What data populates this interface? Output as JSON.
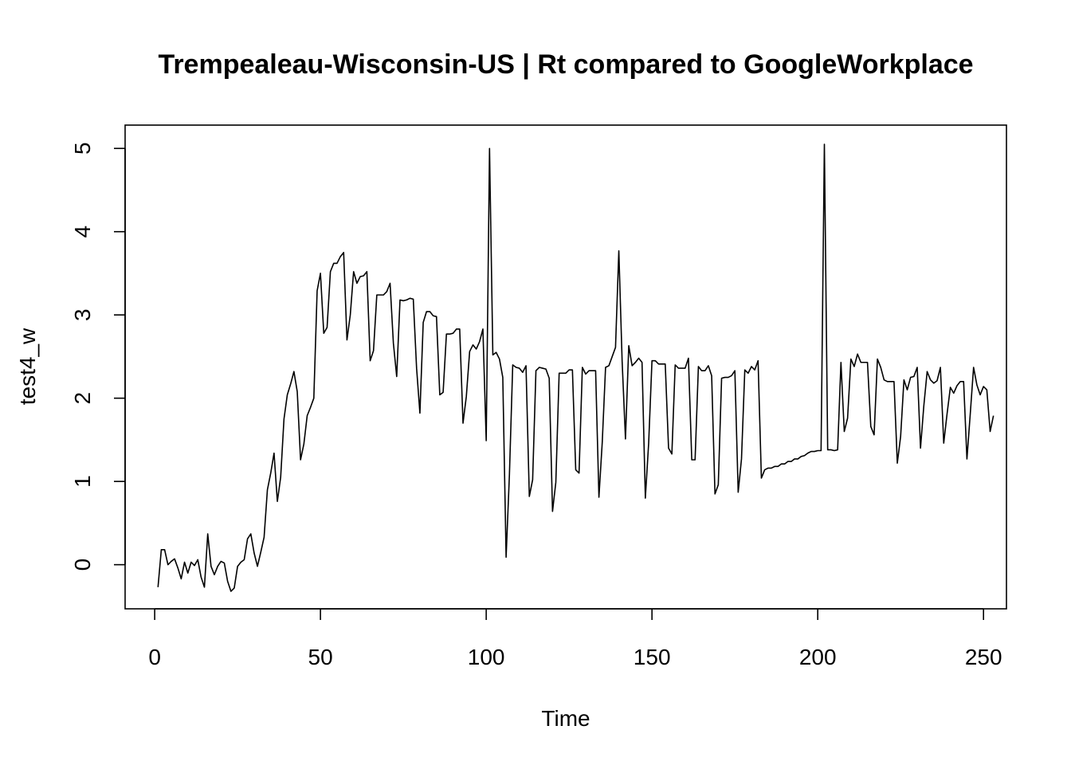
{
  "chart_data": {
    "type": "line",
    "title": "Trempealeau-Wisconsin-US | Rt compared to GoogleWorkplace",
    "xlabel": "Time",
    "ylabel": "test4_w",
    "xlim": [
      -8.92,
      256.92
    ],
    "ylim": [
      -0.53,
      5.28
    ],
    "x_ticks": [
      0,
      50,
      100,
      150,
      200,
      250
    ],
    "y_ticks": [
      0,
      1,
      2,
      3,
      4,
      5
    ],
    "grid": false,
    "legend": "none",
    "line_color": "#000000",
    "series": [
      {
        "x_start": 1,
        "x_step": 1,
        "values": [
          -0.27,
          0.18,
          0.18,
          0.0,
          0.04,
          0.07,
          -0.04,
          -0.17,
          0.03,
          -0.1,
          0.03,
          -0.01,
          0.06,
          -0.15,
          -0.27,
          0.37,
          -0.02,
          -0.12,
          -0.02,
          0.04,
          0.02,
          -0.2,
          -0.32,
          -0.28,
          -0.02,
          0.03,
          0.06,
          0.31,
          0.37,
          0.14,
          -0.02,
          0.15,
          0.33,
          0.9,
          1.1,
          1.34,
          0.76,
          1.05,
          1.75,
          2.04,
          2.17,
          2.32,
          2.08,
          1.26,
          1.45,
          1.79,
          1.89,
          2.0,
          3.29,
          3.5,
          2.78,
          2.85,
          3.52,
          3.62,
          3.62,
          3.7,
          3.75,
          2.7,
          3.0,
          3.52,
          3.38,
          3.46,
          3.47,
          3.52,
          2.45,
          2.57,
          3.24,
          3.24,
          3.24,
          3.28,
          3.38,
          2.66,
          2.26,
          3.18,
          3.17,
          3.18,
          3.2,
          3.19,
          2.36,
          1.82,
          2.91,
          3.04,
          3.04,
          2.99,
          2.98,
          2.04,
          2.07,
          2.77,
          2.77,
          2.78,
          2.83,
          2.83,
          1.7,
          2.02,
          2.56,
          2.64,
          2.59,
          2.68,
          2.83,
          1.49,
          5.0,
          2.52,
          2.55,
          2.47,
          2.25,
          0.09,
          1.08,
          2.4,
          2.37,
          2.36,
          2.31,
          2.39,
          0.82,
          1.02,
          2.33,
          2.37,
          2.36,
          2.35,
          2.24,
          0.64,
          0.99,
          2.3,
          2.3,
          2.3,
          2.34,
          2.34,
          1.14,
          1.1,
          2.37,
          2.29,
          2.33,
          2.33,
          2.33,
          0.81,
          1.47,
          2.37,
          2.39,
          2.5,
          2.61,
          3.77,
          2.44,
          1.51,
          2.63,
          2.39,
          2.43,
          2.48,
          2.43,
          0.8,
          1.46,
          2.45,
          2.45,
          2.41,
          2.41,
          2.41,
          1.4,
          1.33,
          2.4,
          2.36,
          2.36,
          2.36,
          2.48,
          1.26,
          1.26,
          2.38,
          2.33,
          2.33,
          2.39,
          2.27,
          0.85,
          0.96,
          2.24,
          2.25,
          2.25,
          2.27,
          2.33,
          0.87,
          1.27,
          2.34,
          2.3,
          2.38,
          2.34,
          2.45,
          1.04,
          1.14,
          1.16,
          1.16,
          1.18,
          1.18,
          1.21,
          1.21,
          1.24,
          1.24,
          1.27,
          1.27,
          1.3,
          1.31,
          1.34,
          1.36,
          1.36,
          1.37,
          1.37,
          5.05,
          1.38,
          1.38,
          1.37,
          1.38,
          2.43,
          1.6,
          1.76,
          2.47,
          2.38,
          2.53,
          2.43,
          2.43,
          2.43,
          1.66,
          1.56,
          2.47,
          2.37,
          2.22,
          2.2,
          2.2,
          2.2,
          1.22,
          1.54,
          2.22,
          2.1,
          2.25,
          2.26,
          2.37,
          1.4,
          1.91,
          2.32,
          2.22,
          2.18,
          2.21,
          2.37,
          1.46,
          1.81,
          2.13,
          2.06,
          2.15,
          2.2,
          2.2,
          1.27,
          1.81,
          2.37,
          2.16,
          2.04,
          2.14,
          2.1,
          1.6,
          1.79
        ]
      }
    ]
  }
}
